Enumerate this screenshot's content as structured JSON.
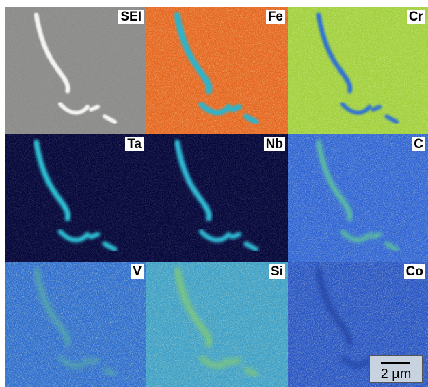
{
  "panels": [
    {
      "label": "SEI"
    },
    {
      "label": "Fe"
    },
    {
      "label": "Cr"
    },
    {
      "label": "Ta"
    },
    {
      "label": "Nb"
    },
    {
      "label": "C"
    },
    {
      "label": "V"
    },
    {
      "label": "Si"
    },
    {
      "label": "Co"
    }
  ],
  "scale_bar": {
    "label": "2 µm"
  }
}
